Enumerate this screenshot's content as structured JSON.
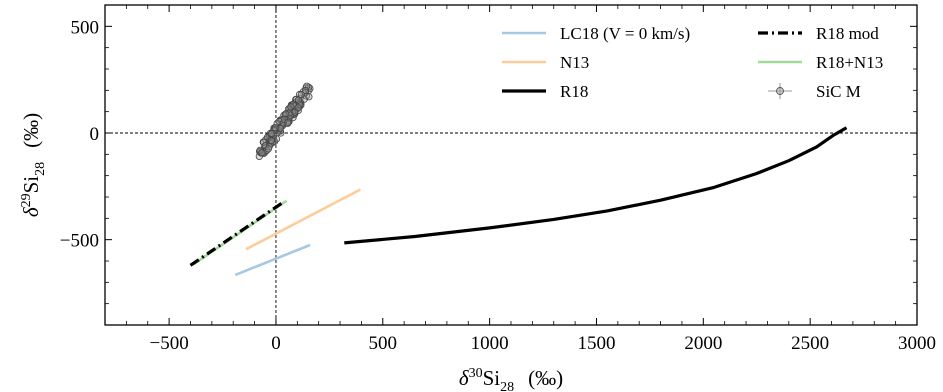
{
  "chart_data": {
    "type": "line",
    "title": "",
    "xlabel": {
      "symbol": "δ",
      "sup": "30",
      "base": "Si",
      "sub": "28",
      "unit": "(‰)"
    },
    "ylabel": {
      "symbol": "δ",
      "sup": "29",
      "base": "Si",
      "sub": "28",
      "unit": "(‰)"
    },
    "xlim": [
      -800,
      3000
    ],
    "ylim": [
      -900,
      600
    ],
    "xticks": [
      -500,
      0,
      500,
      1000,
      1500,
      2000,
      2500,
      3000
    ],
    "xtick_labels": [
      "−500",
      "0",
      "500",
      "1000",
      "1500",
      "2000",
      "2500",
      "3000"
    ],
    "yticks": [
      -500,
      0,
      500
    ],
    "ytick_labels": [
      "−500",
      "0",
      "500"
    ],
    "reference_lines": {
      "x": 0,
      "y": 0,
      "style": "dashed"
    },
    "grid": false,
    "legend_position": "top-right",
    "series": [
      {
        "name": "LC18 (V = 0 km/s)",
        "color": "#a6c8e3",
        "style": "solid",
        "x": [
          -190,
          160
        ],
        "y": [
          -665,
          -525
        ]
      },
      {
        "name": "N13",
        "color": "#fdcc9b",
        "style": "solid",
        "x": [
          -140,
          395
        ],
        "y": [
          -545,
          -265
        ]
      },
      {
        "name": "R18",
        "color": "#000000",
        "style": "solid",
        "x": [
          320,
          650,
          1000,
          1300,
          1550,
          1800,
          2050,
          2250,
          2400,
          2530,
          2610,
          2670
        ],
        "y": [
          -515,
          -485,
          -445,
          -405,
          -365,
          -315,
          -255,
          -190,
          -130,
          -65,
          -10,
          25
        ]
      },
      {
        "name": "R18 mod",
        "color": "#000000",
        "style": "dashdot",
        "x": [
          -400,
          40
        ],
        "y": [
          -620,
          -320
        ]
      },
      {
        "name": "R18+N13",
        "color": "#a3d99a",
        "style": "solid",
        "x": [
          -385,
          50
        ],
        "y": [
          -615,
          -318
        ]
      },
      {
        "name": "SiC M",
        "color": "#808080",
        "style": "markers",
        "x_range": [
          -80,
          160
        ],
        "y_range": [
          -100,
          210
        ]
      }
    ]
  }
}
